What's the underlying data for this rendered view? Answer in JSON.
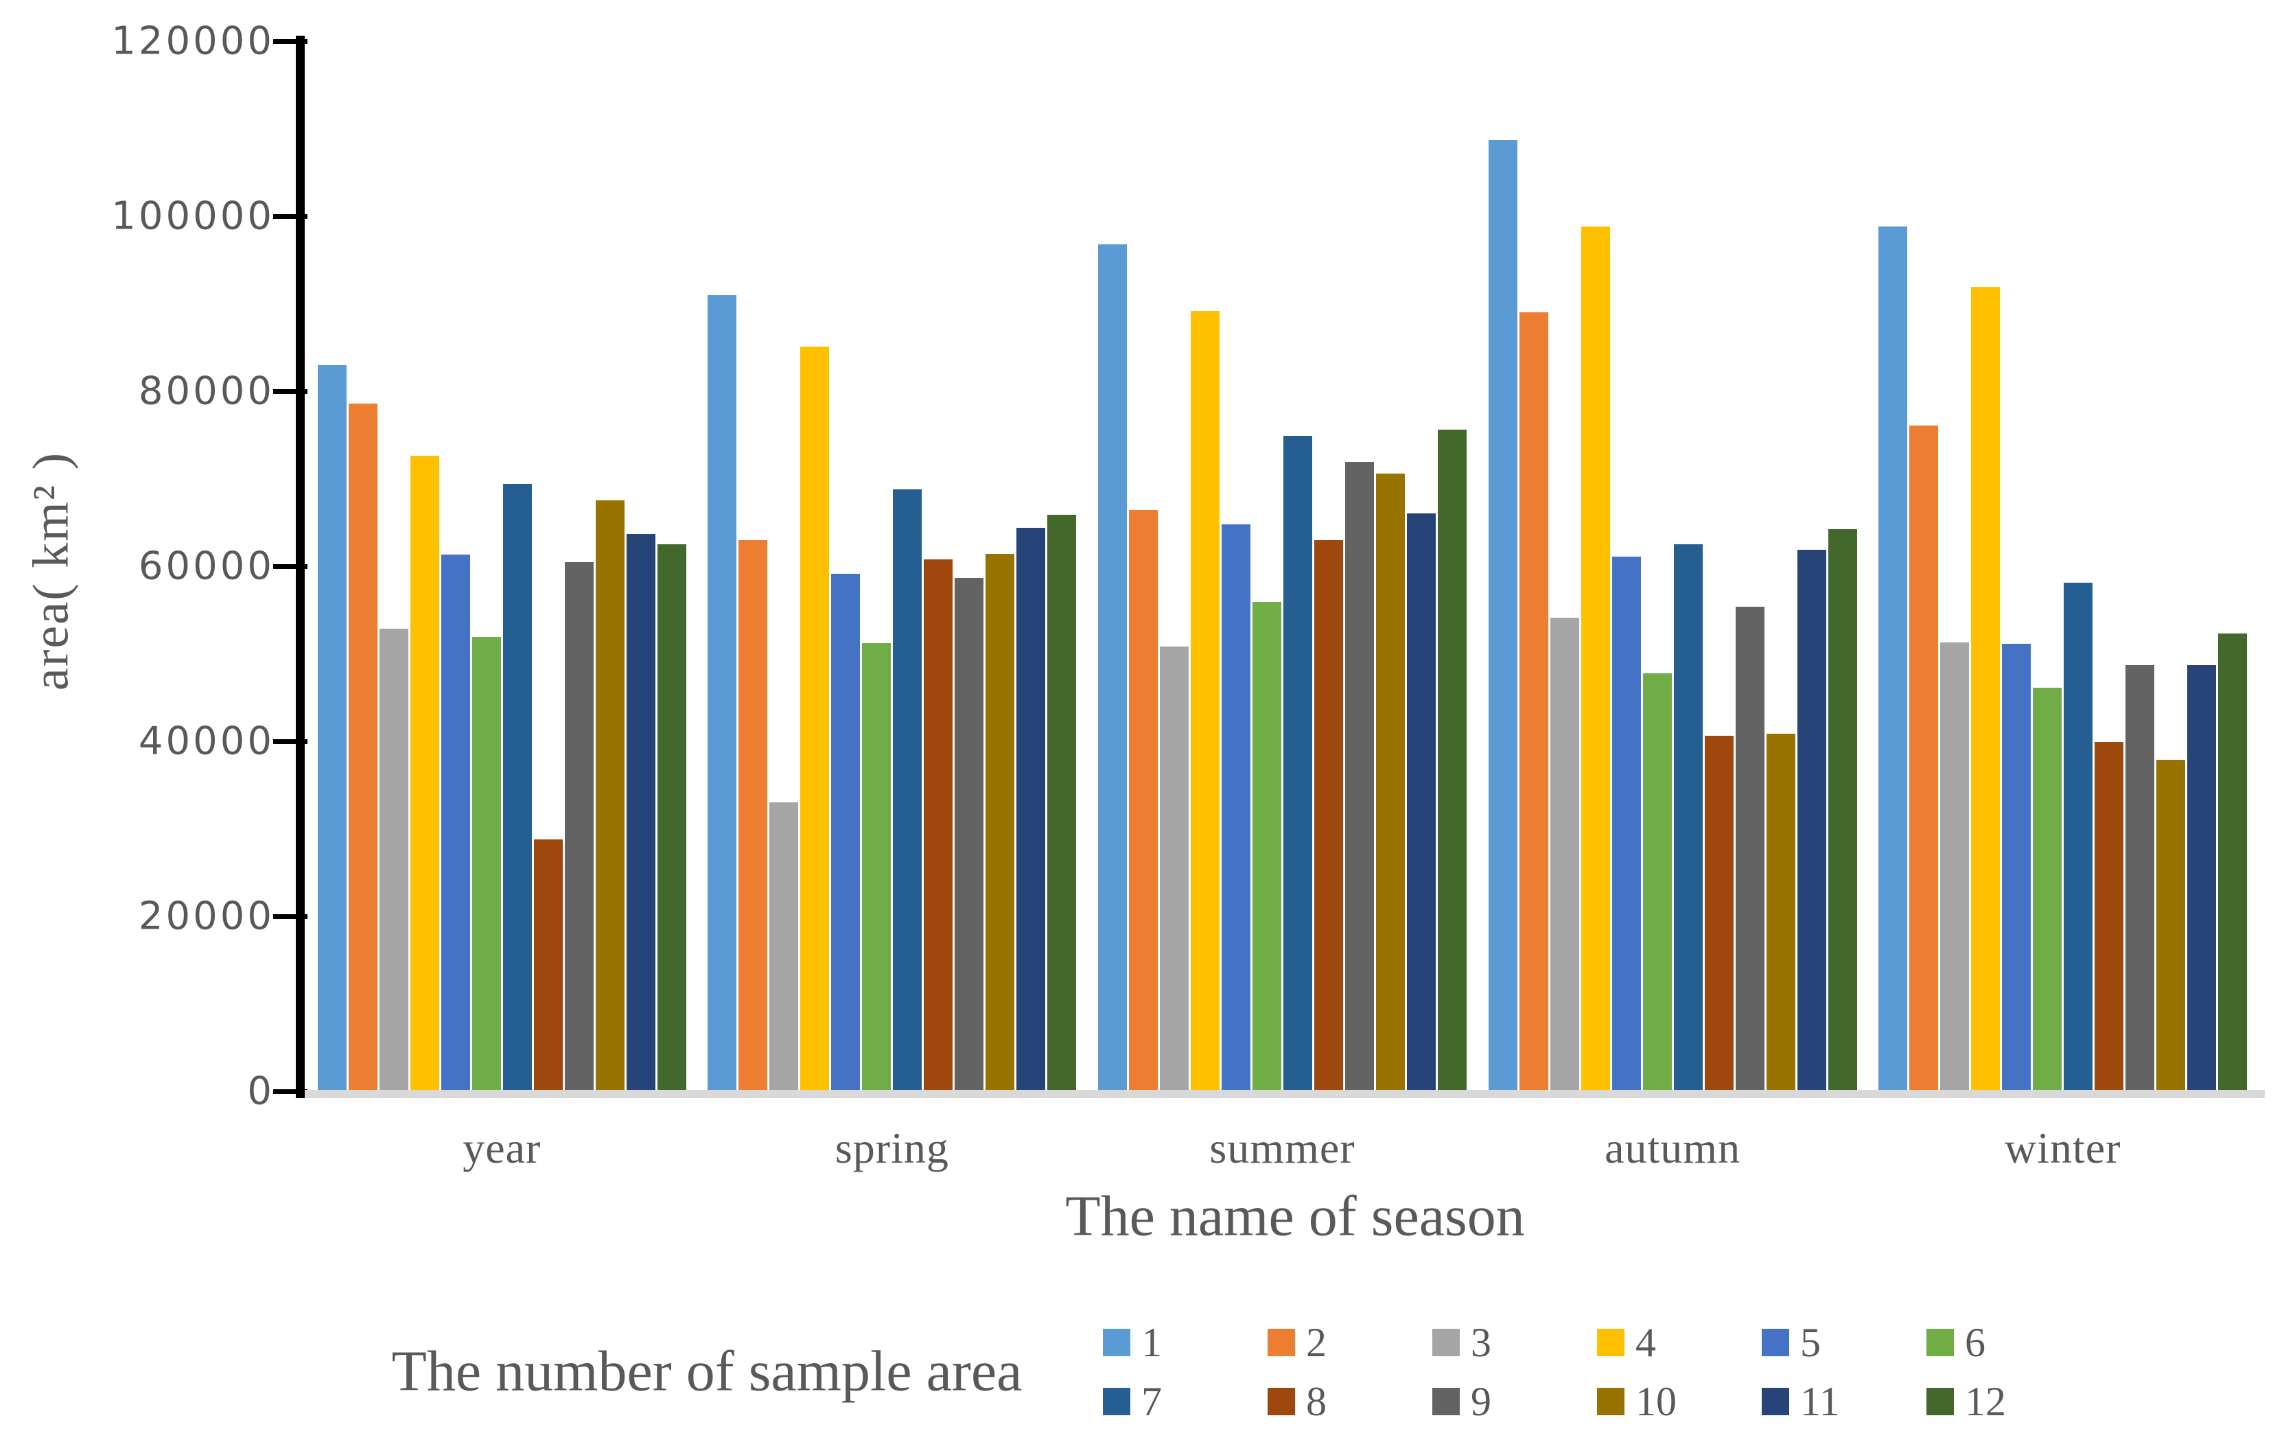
{
  "chart_data": {
    "type": "bar",
    "title": "",
    "xlabel": "The name of season",
    "ylabel": "area( km² )",
    "legend_title": "The number of sample area",
    "legend_position": "bottom",
    "grid": false,
    "categories": [
      "year",
      "spring",
      "summer",
      "autumn",
      "winter"
    ],
    "ylim": [
      0,
      120000
    ],
    "ytick_step": 20000,
    "ytick_labels": [
      "0",
      "20000",
      "40000",
      "60000",
      "80000",
      "100000",
      "120000"
    ],
    "series": [
      {
        "name": "1",
        "color": "#5B9BD5",
        "values": [
          83000,
          91000,
          96800,
          108700,
          98800
        ]
      },
      {
        "name": "2",
        "color": "#ED7D31",
        "values": [
          78600,
          63000,
          66400,
          89000,
          76100
        ]
      },
      {
        "name": "3",
        "color": "#A5A5A5",
        "values": [
          52900,
          33000,
          50800,
          54100,
          51300
        ]
      },
      {
        "name": "4",
        "color": "#FFC000",
        "values": [
          72600,
          85100,
          89200,
          98800,
          91900
        ]
      },
      {
        "name": "5",
        "color": "#4472C4",
        "values": [
          61300,
          59100,
          64800,
          61100,
          51100
        ]
      },
      {
        "name": "6",
        "color": "#70AD47",
        "values": [
          51900,
          51200,
          55900,
          47800,
          46100
        ]
      },
      {
        "name": "7",
        "color": "#255E91",
        "values": [
          69400,
          68800,
          74900,
          62500,
          58100
        ]
      },
      {
        "name": "8",
        "color": "#9E480E",
        "values": [
          28800,
          60800,
          63000,
          40600,
          39900
        ]
      },
      {
        "name": "9",
        "color": "#636363",
        "values": [
          60500,
          58700,
          71900,
          55400,
          48700
        ]
      },
      {
        "name": "10",
        "color": "#997300",
        "values": [
          67500,
          61400,
          70600,
          40900,
          37900
        ]
      },
      {
        "name": "11",
        "color": "#264478",
        "values": [
          63700,
          64400,
          66000,
          61900,
          48700
        ]
      },
      {
        "name": "12",
        "color": "#43682B",
        "values": [
          62500,
          65900,
          75600,
          64200,
          52300
        ]
      }
    ],
    "axis_color": "#000000",
    "baseline_color": "#d9d9d9",
    "text_color": "#595959"
  }
}
